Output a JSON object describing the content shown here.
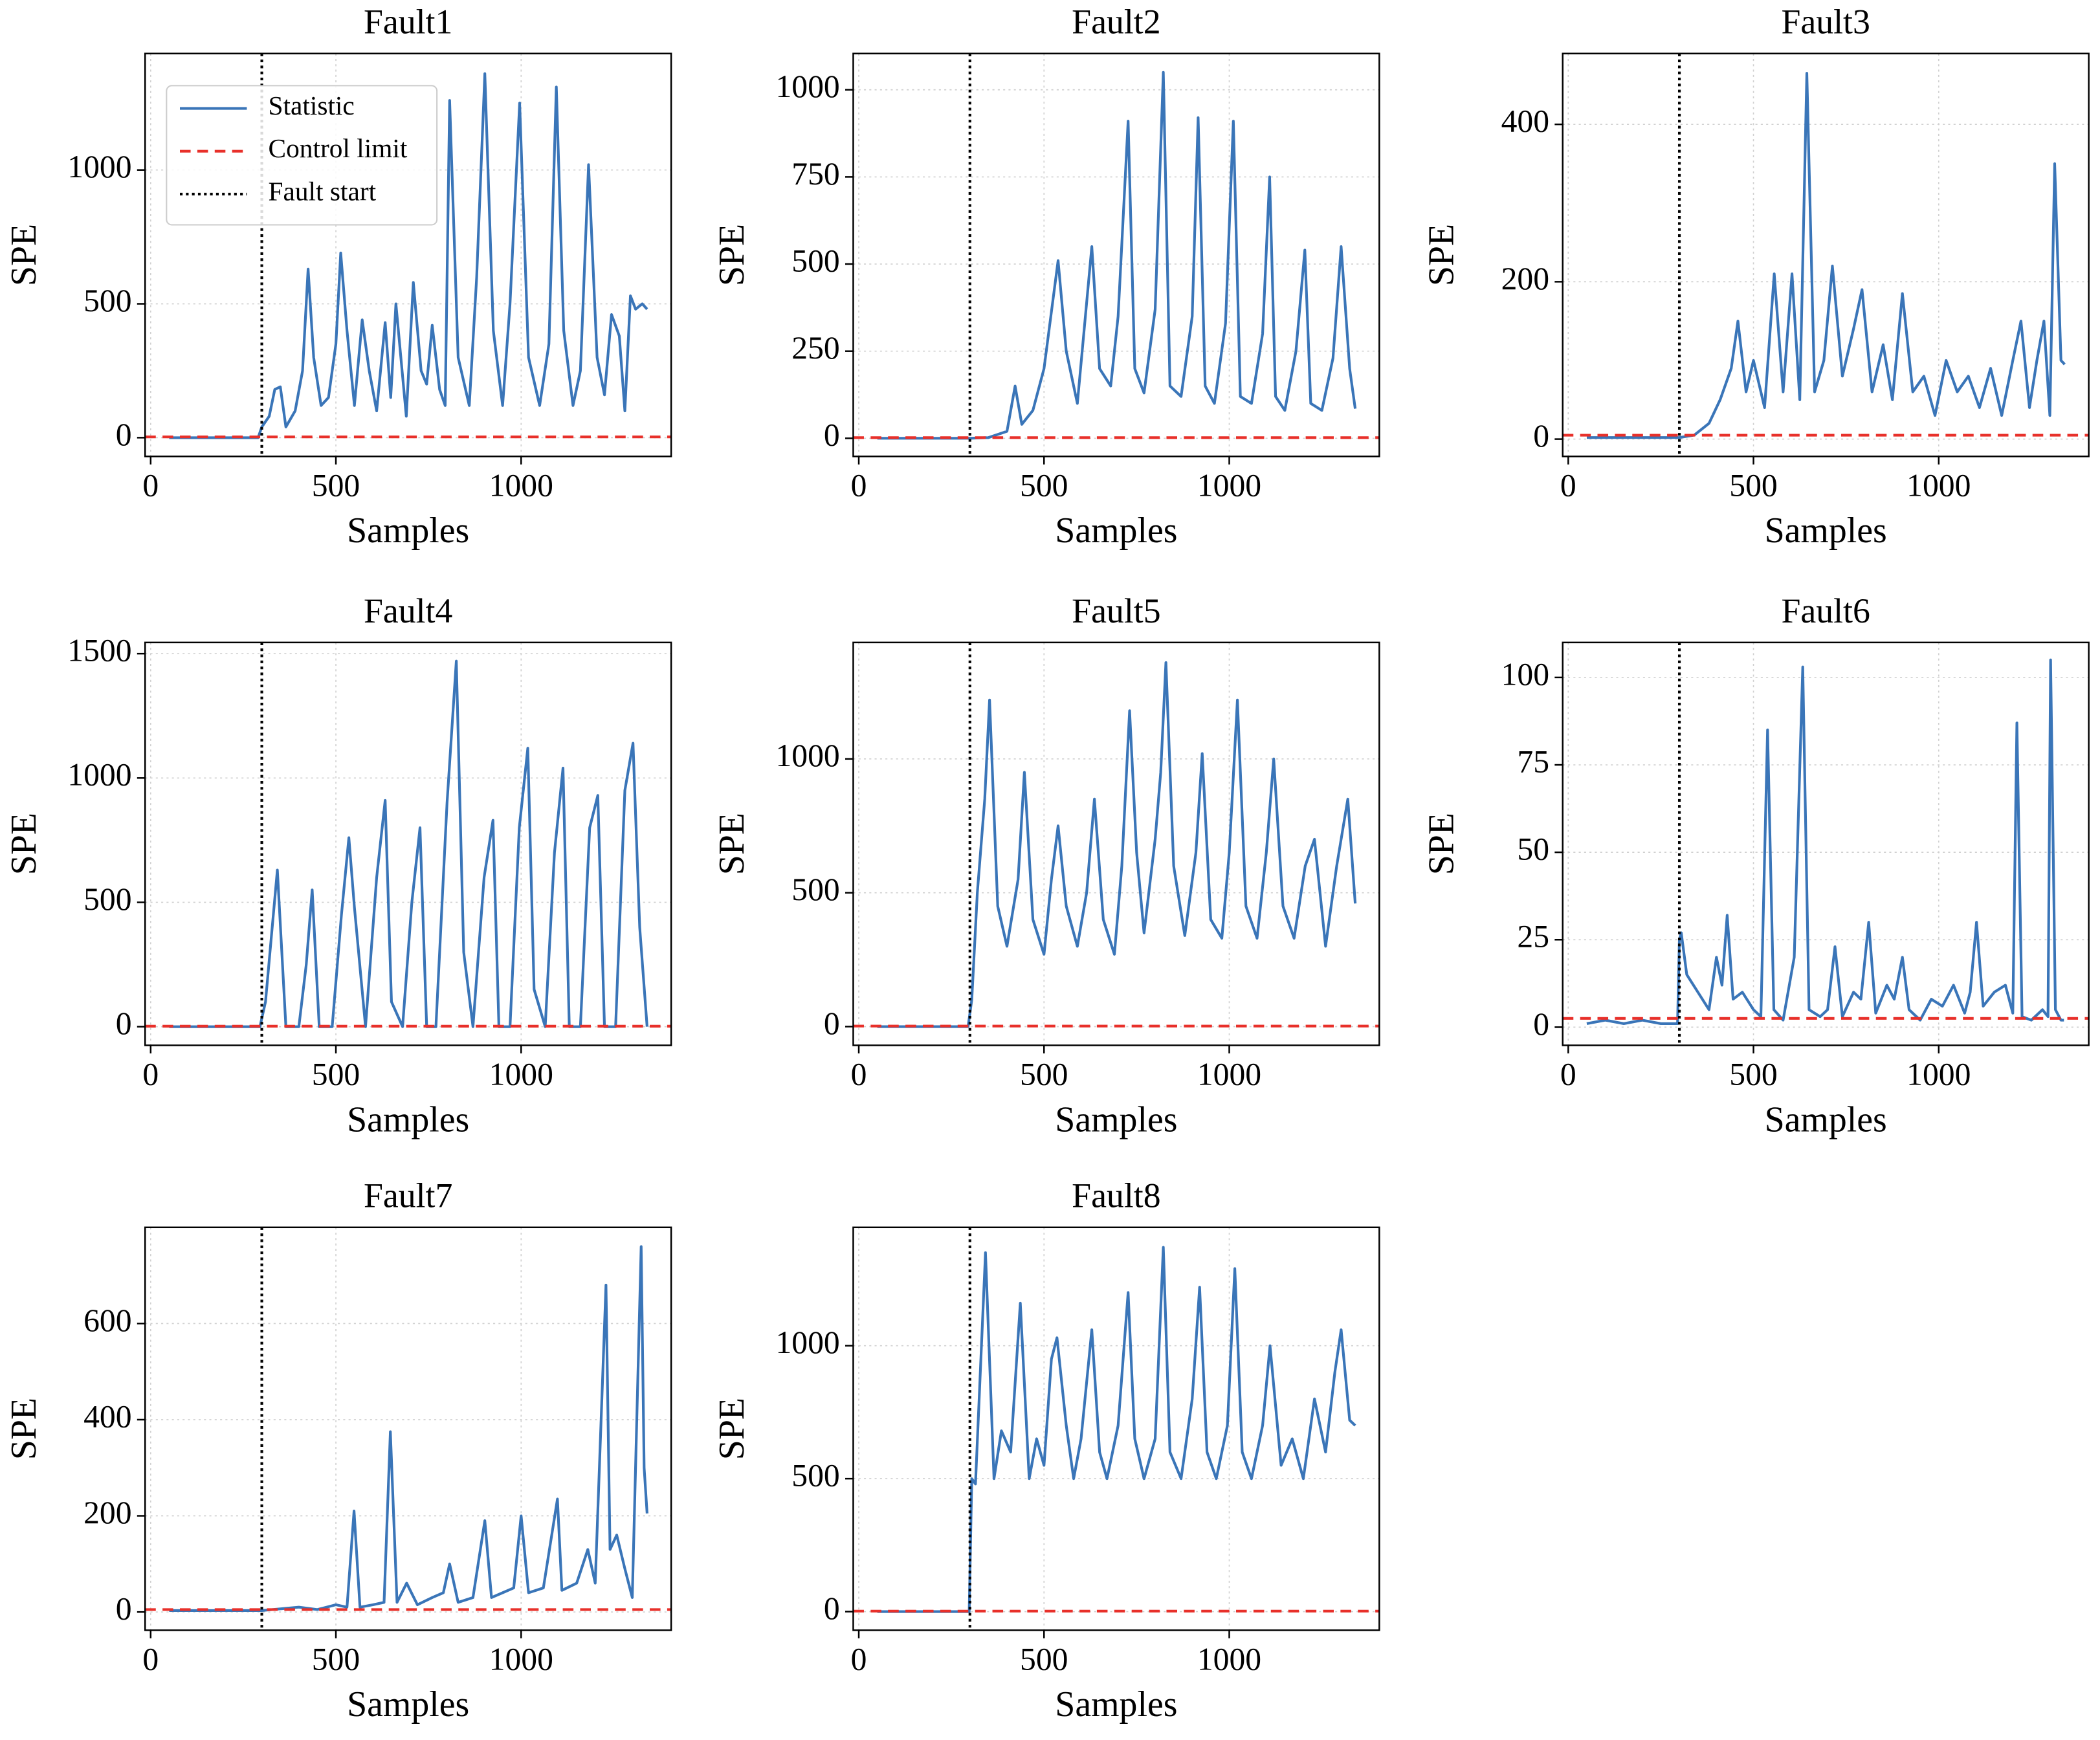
{
  "chart_data": [
    {
      "type": "line",
      "title": "Fault1",
      "xlabel": "Samples",
      "ylabel": "SPE",
      "grid": true,
      "legend": "upper left",
      "xlim": [
        -15,
        1405
      ],
      "xticks": [
        0,
        500,
        1000
      ],
      "ylim": [
        -70,
        1435
      ],
      "yticks": [
        0,
        500,
        1000
      ],
      "x": [
        50,
        290,
        300,
        320,
        335,
        350,
        365,
        390,
        410,
        425,
        440,
        460,
        480,
        500,
        513,
        530,
        550,
        571,
        590,
        610,
        633,
        648,
        662,
        690,
        709,
        730,
        745,
        760,
        780,
        795,
        807,
        830,
        860,
        880,
        902,
        925,
        950,
        970,
        996,
        1020,
        1050,
        1075,
        1095,
        1115,
        1140,
        1160,
        1182,
        1205,
        1225,
        1244,
        1265,
        1280,
        1295,
        1309,
        1327,
        1340
      ],
      "series": [
        {
          "name": "Statistic",
          "color": "#3a75b8",
          "values": [
            0,
            0,
            40,
            80,
            180,
            190,
            40,
            100,
            250,
            630,
            300,
            120,
            150,
            350,
            690,
            400,
            120,
            440,
            250,
            100,
            430,
            150,
            500,
            80,
            580,
            250,
            200,
            420,
            180,
            120,
            1260,
            300,
            120,
            600,
            1360,
            400,
            120,
            500,
            1250,
            300,
            120,
            350,
            1310,
            400,
            120,
            250,
            1020,
            300,
            160,
            460,
            380,
            100,
            530,
            480,
            500,
            480
          ]
        }
      ],
      "control_limit": {
        "name": "Control limit",
        "value": 3,
        "color": "#e8302a"
      },
      "fault_start": {
        "name": "Fault start",
        "value": 300,
        "color": "#000000"
      }
    },
    {
      "type": "line",
      "title": "Fault2",
      "xlabel": "Samples",
      "ylabel": "SPE",
      "grid": true,
      "xlim": [
        -15,
        1405
      ],
      "xticks": [
        0,
        500,
        1000
      ],
      "ylim": [
        -52,
        1104
      ],
      "yticks": [
        0,
        250,
        500,
        750,
        1000
      ],
      "x": [
        50,
        300,
        350,
        400,
        422,
        440,
        470,
        500,
        538,
        560,
        590,
        629,
        650,
        680,
        700,
        727,
        745,
        770,
        800,
        822,
        840,
        870,
        900,
        916,
        935,
        960,
        990,
        1011,
        1030,
        1060,
        1090,
        1109,
        1125,
        1150,
        1180,
        1204,
        1220,
        1250,
        1280,
        1302,
        1325,
        1340
      ],
      "series": [
        {
          "color": "#3a75b8",
          "values": [
            0,
            0,
            2,
            20,
            150,
            40,
            80,
            200,
            510,
            250,
            100,
            550,
            200,
            150,
            350,
            910,
            200,
            130,
            370,
            1050,
            150,
            120,
            350,
            920,
            150,
            100,
            330,
            910,
            120,
            100,
            300,
            750,
            120,
            80,
            250,
            540,
            100,
            80,
            230,
            550,
            200,
            85
          ]
        }
      ],
      "control_limit": {
        "value": 2,
        "color": "#e8302a"
      },
      "fault_start": {
        "value": 300,
        "color": "#000000"
      }
    },
    {
      "type": "line",
      "title": "Fault3",
      "xlabel": "Samples",
      "ylabel": "SPE",
      "grid": true,
      "xlim": [
        -15,
        1405
      ],
      "xticks": [
        0,
        500,
        1000
      ],
      "ylim": [
        -22,
        490
      ],
      "yticks": [
        0,
        200,
        400
      ],
      "x": [
        50,
        300,
        340,
        380,
        410,
        440,
        458,
        480,
        500,
        530,
        556,
        580,
        604,
        625,
        644,
        665,
        690,
        713,
        740,
        770,
        793,
        820,
        850,
        875,
        902,
        930,
        960,
        990,
        1020,
        1050,
        1080,
        1110,
        1140,
        1170,
        1200,
        1222,
        1245,
        1265,
        1284,
        1300,
        1313,
        1330,
        1340
      ],
      "series": [
        {
          "color": "#3a75b8",
          "values": [
            2,
            2,
            5,
            20,
            50,
            90,
            150,
            60,
            100,
            40,
            210,
            60,
            210,
            50,
            465,
            60,
            100,
            220,
            80,
            140,
            190,
            60,
            120,
            50,
            185,
            60,
            80,
            30,
            100,
            60,
            80,
            40,
            90,
            30,
            100,
            150,
            40,
            100,
            150,
            30,
            350,
            100,
            95
          ]
        }
      ],
      "control_limit": {
        "value": 5,
        "color": "#e8302a"
      },
      "fault_start": {
        "value": 300,
        "color": "#000000"
      }
    },
    {
      "type": "line",
      "title": "Fault4",
      "xlabel": "Samples",
      "ylabel": "SPE",
      "grid": true,
      "xlim": [
        -15,
        1405
      ],
      "xticks": [
        0,
        500,
        1000
      ],
      "ylim": [
        -75,
        1545
      ],
      "yticks": [
        0,
        500,
        1000,
        1500
      ],
      "x": [
        50,
        295,
        310,
        342,
        365,
        400,
        420,
        436,
        455,
        490,
        515,
        535,
        550,
        580,
        610,
        633,
        650,
        680,
        705,
        727,
        745,
        770,
        800,
        825,
        845,
        870,
        900,
        924,
        940,
        970,
        995,
        1018,
        1035,
        1065,
        1090,
        1113,
        1130,
        1160,
        1185,
        1207,
        1225,
        1255,
        1280,
        1302,
        1320,
        1340
      ],
      "series": [
        {
          "color": "#3a75b8",
          "values": [
            0,
            0,
            100,
            630,
            0,
            0,
            250,
            550,
            0,
            0,
            450,
            760,
            480,
            0,
            600,
            910,
            100,
            0,
            500,
            800,
            0,
            0,
            900,
            1470,
            300,
            0,
            600,
            830,
            0,
            0,
            800,
            1120,
            150,
            0,
            700,
            1040,
            0,
            0,
            800,
            930,
            0,
            0,
            950,
            1140,
            400,
            0
          ]
        }
      ],
      "control_limit": {
        "value": 2,
        "color": "#e8302a"
      },
      "fault_start": {
        "value": 300,
        "color": "#000000"
      }
    },
    {
      "type": "line",
      "title": "Fault5",
      "xlabel": "Samples",
      "ylabel": "SPE",
      "grid": true,
      "xlim": [
        -15,
        1405
      ],
      "xticks": [
        0,
        500,
        1000
      ],
      "ylim": [
        -70,
        1435
      ],
      "yticks": [
        0,
        500,
        1000
      ],
      "x": [
        50,
        295,
        305,
        320,
        340,
        353,
        375,
        400,
        430,
        447,
        470,
        500,
        520,
        538,
        560,
        590,
        615,
        636,
        660,
        690,
        710,
        731,
        750,
        770,
        800,
        815,
        829,
        850,
        880,
        910,
        927,
        950,
        980,
        1000,
        1022,
        1045,
        1075,
        1100,
        1120,
        1145,
        1175,
        1205,
        1230,
        1260,
        1290,
        1320,
        1340
      ],
      "series": [
        {
          "color": "#3a75b8",
          "values": [
            0,
            0,
            100,
            500,
            850,
            1220,
            450,
            300,
            550,
            950,
            400,
            270,
            550,
            750,
            450,
            300,
            500,
            850,
            400,
            270,
            600,
            1180,
            650,
            350,
            700,
            950,
            1360,
            600,
            340,
            650,
            1020,
            400,
            330,
            650,
            1220,
            450,
            330,
            650,
            1000,
            450,
            330,
            600,
            700,
            300,
            600,
            850,
            460
          ]
        }
      ],
      "control_limit": {
        "value": 2,
        "color": "#e8302a"
      },
      "fault_start": {
        "value": 300,
        "color": "#000000"
      }
    },
    {
      "type": "line",
      "title": "Fault6",
      "xlabel": "Samples",
      "ylabel": "SPE",
      "grid": true,
      "xlim": [
        -15,
        1405
      ],
      "xticks": [
        0,
        500,
        1000
      ],
      "ylim": [
        -5.2,
        110
      ],
      "yticks": [
        0,
        25,
        50,
        75,
        100
      ],
      "x": [
        50,
        100,
        150,
        200,
        250,
        295,
        300,
        305,
        320,
        350,
        380,
        400,
        415,
        429,
        445,
        470,
        500,
        520,
        538,
        555,
        580,
        610,
        633,
        650,
        680,
        700,
        720,
        740,
        770,
        790,
        811,
        830,
        860,
        880,
        902,
        920,
        950,
        980,
        1010,
        1040,
        1070,
        1085,
        1102,
        1120,
        1150,
        1180,
        1200,
        1211,
        1225,
        1250,
        1280,
        1295,
        1302,
        1315,
        1330,
        1338
      ],
      "series": [
        {
          "color": "#3a75b8",
          "values": [
            1,
            2,
            1,
            2,
            1,
            1,
            25,
            27,
            15,
            10,
            5,
            20,
            12,
            32,
            8,
            10,
            5,
            3,
            85,
            5,
            2,
            20,
            103,
            5,
            3,
            5,
            23,
            3,
            10,
            8,
            30,
            4,
            12,
            8,
            20,
            5,
            2,
            8,
            6,
            12,
            4,
            10,
            30,
            6,
            10,
            12,
            4,
            87,
            3,
            2,
            5,
            3,
            105,
            5,
            2,
            2
          ]
        }
      ],
      "control_limit": {
        "value": 2.5,
        "color": "#e8302a"
      },
      "fault_start": {
        "value": 300,
        "color": "#000000"
      }
    },
    {
      "type": "line",
      "title": "Fault7",
      "xlabel": "Samples",
      "ylabel": "SPE",
      "grid": true,
      "xlim": [
        -15,
        1405
      ],
      "xticks": [
        0,
        500,
        1000
      ],
      "ylim": [
        -38,
        800
      ],
      "yticks": [
        0,
        200,
        400,
        600
      ],
      "x": [
        50,
        300,
        400,
        450,
        500,
        530,
        549,
        565,
        600,
        630,
        647,
        665,
        691,
        720,
        760,
        790,
        807,
        830,
        870,
        902,
        920,
        950,
        980,
        1000,
        1020,
        1060,
        1098,
        1110,
        1150,
        1180,
        1200,
        1229,
        1240,
        1258,
        1280,
        1300,
        1324,
        1332,
        1340
      ],
      "series": [
        {
          "color": "#3a75b8",
          "values": [
            3,
            3,
            10,
            5,
            15,
            10,
            210,
            10,
            15,
            20,
            375,
            20,
            60,
            15,
            30,
            40,
            100,
            20,
            30,
            190,
            30,
            40,
            50,
            200,
            40,
            50,
            235,
            45,
            60,
            130,
            60,
            680,
            130,
            160,
            90,
            30,
            760,
            300,
            205
          ]
        }
      ],
      "control_limit": {
        "value": 5,
        "color": "#e8302a"
      },
      "fault_start": {
        "value": 300,
        "color": "#000000"
      }
    },
    {
      "type": "line",
      "title": "Fault8",
      "xlabel": "Samples",
      "ylabel": "SPE",
      "grid": true,
      "xlim": [
        -15,
        1405
      ],
      "xticks": [
        0,
        500,
        1000
      ],
      "ylim": [
        -70,
        1445
      ],
      "yticks": [
        0,
        500,
        1000
      ],
      "x": [
        50,
        298,
        305,
        315,
        342,
        365,
        385,
        410,
        436,
        460,
        480,
        500,
        520,
        535,
        560,
        580,
        600,
        629,
        650,
        670,
        700,
        727,
        745,
        770,
        800,
        822,
        840,
        870,
        900,
        920,
        940,
        965,
        995,
        1015,
        1035,
        1060,
        1090,
        1110,
        1140,
        1170,
        1200,
        1230,
        1260,
        1285,
        1302,
        1325,
        1340
      ],
      "series": [
        {
          "color": "#3a75b8",
          "values": [
            0,
            0,
            500,
            480,
            1350,
            500,
            680,
            600,
            1160,
            500,
            650,
            550,
            950,
            1030,
            700,
            500,
            650,
            1060,
            600,
            500,
            700,
            1200,
            650,
            500,
            650,
            1370,
            600,
            500,
            800,
            1220,
            600,
            500,
            700,
            1290,
            600,
            500,
            700,
            1000,
            550,
            650,
            500,
            800,
            600,
            900,
            1060,
            720,
            700
          ]
        }
      ],
      "control_limit": {
        "value": 2,
        "color": "#e8302a"
      },
      "fault_start": {
        "value": 300,
        "color": "#000000"
      }
    }
  ]
}
